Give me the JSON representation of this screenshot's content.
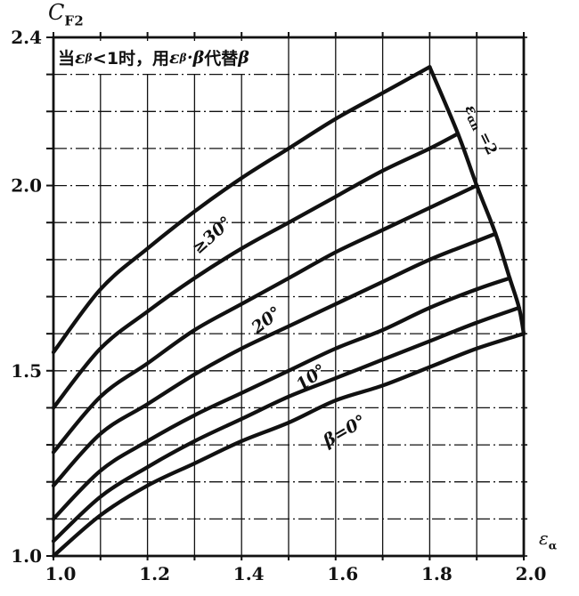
{
  "colors": {
    "ink": "#111111",
    "background": "#ffffff"
  },
  "titles": {
    "y_axis_parts": [
      {
        "t": "C",
        "i": true
      },
      {
        "t": "F2",
        "sub": true
      }
    ],
    "x_axis_parts": [
      {
        "t": "ε",
        "i": true
      },
      {
        "t": "α",
        "sub": true
      }
    ],
    "note_parts": [
      {
        "t": "当 "
      },
      {
        "t": "ε",
        "i": true,
        "gr": true
      },
      {
        "t": "β",
        "sub": true,
        "gr": true
      },
      {
        "t": " <1时，用 "
      },
      {
        "t": "ε",
        "i": true,
        "gr": true
      },
      {
        "t": "β",
        "sub": true,
        "gr": true
      },
      {
        "t": "·",
        "gr": true
      },
      {
        "t": "β",
        "i": true,
        "gr": true
      },
      {
        "t": " 代替 "
      },
      {
        "t": "β",
        "i": true,
        "gr": true
      }
    ]
  },
  "chart_data": {
    "type": "line",
    "title": "",
    "xlabel": "εα",
    "ylabel": "CF2",
    "note": "当 εβ<1时，用 εβ·β 代替 β",
    "xlim": [
      1.0,
      2.0
    ],
    "ylim": [
      1.0,
      2.4
    ],
    "grid_step": 0.1,
    "grid": "on",
    "x_ticks": [
      {
        "v": 1.0,
        "t": "1.0"
      },
      {
        "v": 1.2,
        "t": "1.2"
      },
      {
        "v": 1.4,
        "t": "1.4"
      },
      {
        "v": 1.6,
        "t": "1.6"
      },
      {
        "v": 1.8,
        "t": "1.8"
      },
      {
        "v": 2.0,
        "t": "2.0"
      }
    ],
    "y_ticks": [
      {
        "v": 2.4,
        "t": "2.4"
      },
      {
        "v": 2.0,
        "t": "2.0"
      },
      {
        "v": 1.5,
        "t": "1.5"
      },
      {
        "v": 1.0,
        "t": "1.0"
      }
    ],
    "series": [
      {
        "name": "beta-0",
        "label": "β=0°",
        "x": [
          1.0,
          1.1,
          1.2,
          1.3,
          1.4,
          1.5,
          1.6,
          1.7,
          1.8,
          1.9,
          2.0
        ],
        "y": [
          1.0,
          1.11,
          1.19,
          1.25,
          1.31,
          1.36,
          1.42,
          1.46,
          1.51,
          1.56,
          1.6
        ]
      },
      {
        "name": "beta-5",
        "label": "",
        "x": [
          1.0,
          1.1,
          1.2,
          1.3,
          1.4,
          1.5,
          1.6,
          1.7,
          1.8,
          1.9,
          1.99
        ],
        "y": [
          1.04,
          1.16,
          1.24,
          1.31,
          1.37,
          1.43,
          1.48,
          1.53,
          1.58,
          1.63,
          1.67
        ]
      },
      {
        "name": "beta-10",
        "label": "10°",
        "x": [
          1.0,
          1.1,
          1.2,
          1.3,
          1.4,
          1.5,
          1.6,
          1.7,
          1.8,
          1.9,
          1.97
        ],
        "y": [
          1.1,
          1.23,
          1.31,
          1.38,
          1.44,
          1.5,
          1.56,
          1.61,
          1.67,
          1.72,
          1.75
        ]
      },
      {
        "name": "beta-15",
        "label": "",
        "x": [
          1.0,
          1.1,
          1.2,
          1.3,
          1.4,
          1.5,
          1.6,
          1.7,
          1.8,
          1.9,
          1.94
        ],
        "y": [
          1.19,
          1.33,
          1.41,
          1.49,
          1.56,
          1.62,
          1.68,
          1.74,
          1.8,
          1.85,
          1.87
        ]
      },
      {
        "name": "beta-20",
        "label": "20°",
        "x": [
          1.0,
          1.1,
          1.2,
          1.3,
          1.4,
          1.5,
          1.6,
          1.7,
          1.8,
          1.9
        ],
        "y": [
          1.28,
          1.43,
          1.52,
          1.61,
          1.68,
          1.75,
          1.82,
          1.88,
          1.94,
          2.0
        ]
      },
      {
        "name": "beta-25",
        "label": "",
        "x": [
          1.0,
          1.1,
          1.2,
          1.3,
          1.4,
          1.5,
          1.6,
          1.7,
          1.8,
          1.86
        ],
        "y": [
          1.4,
          1.56,
          1.66,
          1.75,
          1.83,
          1.9,
          1.97,
          2.04,
          2.1,
          2.14
        ]
      },
      {
        "name": "beta-ge-30",
        "label": "≥30°",
        "x": [
          1.0,
          1.1,
          1.2,
          1.3,
          1.4,
          1.5,
          1.6,
          1.7,
          1.8
        ],
        "y": [
          1.55,
          1.72,
          1.83,
          1.93,
          2.02,
          2.1,
          2.18,
          2.25,
          2.32
        ]
      }
    ],
    "boundary": {
      "name": "epsilon-alpha-n-limit",
      "label_parts": [
        {
          "t": "ε",
          "i": true
        },
        {
          "t": "αn",
          "sub": true
        },
        {
          "t": " =2"
        }
      ],
      "label_anchor": {
        "x": 1.9,
        "y": 2.145,
        "rot": 64
      },
      "points": [
        [
          1.8,
          2.32
        ],
        [
          1.86,
          2.14
        ],
        [
          1.9,
          2.0
        ],
        [
          1.94,
          1.87
        ],
        [
          1.97,
          1.75
        ],
        [
          1.99,
          1.67
        ],
        [
          2.0,
          1.6
        ]
      ]
    },
    "curve_labels": [
      {
        "text": "≥30°",
        "x": 1.345,
        "y": 1.855,
        "rot": -42
      },
      {
        "text": "20°",
        "x": 1.46,
        "y": 1.625,
        "rot": -38
      },
      {
        "text": "10°",
        "x": 1.555,
        "y": 1.47,
        "rot": -36
      },
      {
        "text": "β=0°",
        "x": 1.625,
        "y": 1.325,
        "rot": -30
      }
    ],
    "legend": "none"
  }
}
